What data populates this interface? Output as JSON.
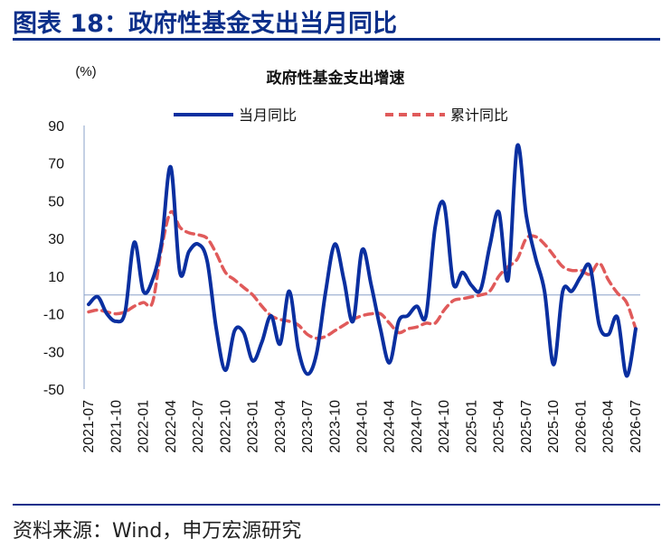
{
  "figure": {
    "title": "图表 18：政府性基金支出当月同比",
    "source": "资料来源：Wind，申万宏源研究"
  },
  "chart_data": {
    "type": "line",
    "title": "政府性基金支出增速",
    "ylabel": "(%)",
    "ylim": [
      -50,
      90
    ],
    "yticks": [
      90,
      70,
      50,
      30,
      10,
      -10,
      -30,
      -50
    ],
    "x_tick_labels": [
      "2021-07",
      "2021-10",
      "2022-01",
      "2022-04",
      "2022-07",
      "2022-10",
      "2023-01",
      "2023-04",
      "2023-07",
      "2023-10",
      "2024-01",
      "2024-04",
      "2024-07",
      "2024-10",
      "2025-01",
      "2025-04",
      "2025-07",
      "2025-10",
      "2026-01",
      "2026-04",
      "2026-07"
    ],
    "x": [
      "2021-07",
      "2021-08",
      "2021-09",
      "2021-10",
      "2021-11",
      "2021-12",
      "2022-01",
      "2022-02",
      "2022-03",
      "2022-04",
      "2022-05",
      "2022-06",
      "2022-07",
      "2022-08",
      "2022-09",
      "2022-10",
      "2022-11",
      "2022-12",
      "2023-01",
      "2023-02",
      "2023-03",
      "2023-04",
      "2023-05",
      "2023-06",
      "2023-07",
      "2023-08",
      "2023-09",
      "2023-10",
      "2023-11",
      "2023-12",
      "2024-01",
      "2024-02",
      "2024-03",
      "2024-04",
      "2024-05",
      "2024-06",
      "2024-07",
      "2024-08",
      "2024-09",
      "2024-10",
      "2024-11",
      "2024-12",
      "2025-01",
      "2025-02",
      "2025-03",
      "2025-04",
      "2025-05",
      "2025-06",
      "2025-07",
      "2025-08",
      "2025-09",
      "2025-10",
      "2025-11",
      "2025-12",
      "2026-01",
      "2026-02",
      "2026-03",
      "2026-04",
      "2026-05",
      "2026-06",
      "2026-07"
    ],
    "series": [
      {
        "name": "当月同比",
        "color": "#0a2fa0",
        "style": "solid",
        "values": [
          -5,
          -1,
          -10,
          -14,
          -9,
          28,
          2,
          8,
          28,
          68,
          12,
          23,
          27,
          18,
          -18,
          -40,
          -19,
          -20,
          -35,
          -25,
          -11,
          -26,
          2,
          -29,
          -42,
          -31,
          2,
          27,
          8,
          -14,
          24,
          5,
          -18,
          -36,
          -14,
          -11,
          -6,
          -11,
          36,
          48,
          6,
          12,
          5,
          3,
          26,
          44,
          8,
          79,
          42,
          20,
          2,
          -37,
          2,
          2,
          10,
          15,
          -16,
          -21,
          -12,
          -43,
          -18
        ]
      },
      {
        "name": "累计同比",
        "color": "#e05a5a",
        "style": "dashed",
        "values": [
          -9,
          -8,
          -9,
          -10,
          -9,
          -6,
          -4,
          -4,
          25,
          44,
          36,
          33,
          32,
          30,
          22,
          12,
          8,
          4,
          0,
          -6,
          -11,
          -13,
          -14,
          -16,
          -21,
          -23,
          -22,
          -19,
          -16,
          -13,
          -11,
          -10,
          -10,
          -15,
          -20,
          -18,
          -17,
          -15,
          -15,
          -8,
          -3,
          -2,
          -1,
          0,
          2,
          10,
          15,
          19,
          30,
          31,
          27,
          21,
          15,
          13,
          13,
          11,
          17,
          8,
          1,
          -4,
          -18
        ]
      }
    ],
    "legend": "top-center",
    "zero_line": true,
    "grid": false
  }
}
